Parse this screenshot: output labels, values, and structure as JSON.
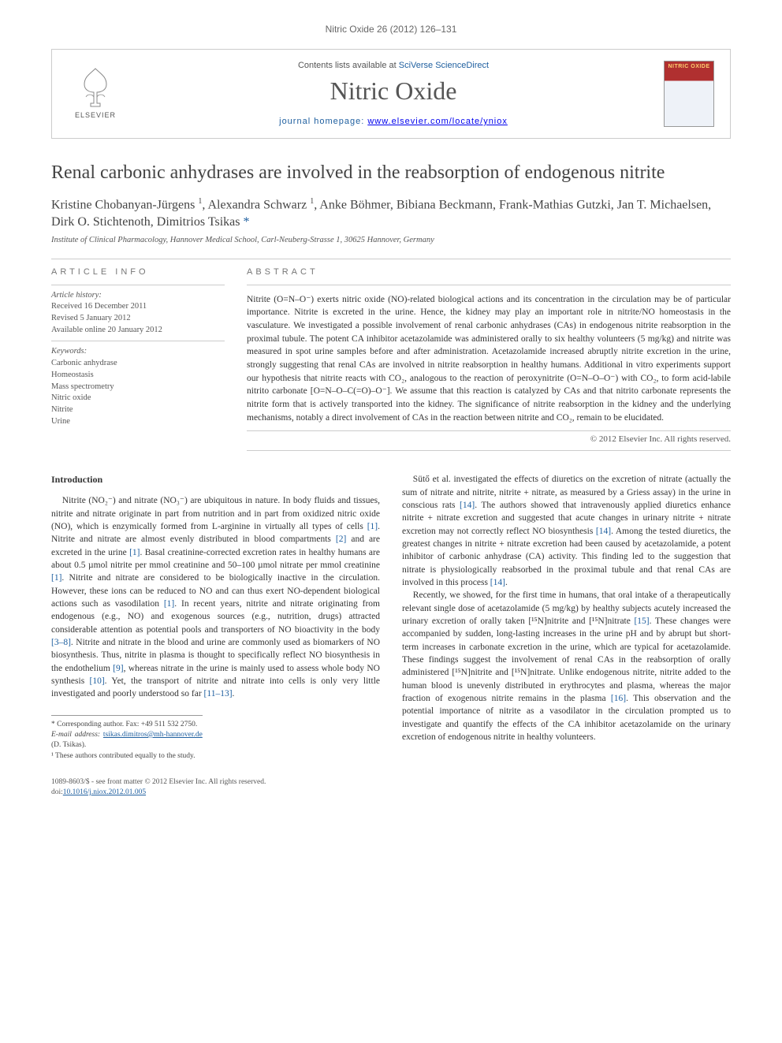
{
  "running_header": "Nitric Oxide 26 (2012) 126–131",
  "journal_box": {
    "contents_prefix": "Contents lists available at ",
    "contents_link": "SciVerse ScienceDirect",
    "journal_name": "Nitric Oxide",
    "homepage_prefix": "journal homepage: ",
    "homepage_url": "www.elsevier.com/locate/yniox",
    "publisher_label": "ELSEVIER",
    "cover_title": "NITRIC OXIDE"
  },
  "article": {
    "title": "Renal carbonic anhydrases are involved in the reabsorption of endogenous nitrite",
    "authors_html": "Kristine Chobanyan-Jürgens <sup>1</sup>, Alexandra Schwarz <sup>1</sup>, Anke Böhmer, Bibiana Beckmann, Frank-Mathias Gutzki, Jan T. Michaelsen, Dirk O. Stichtenoth, Dimitrios Tsikas <span class='corr'>*</span>",
    "affiliation": "Institute of Clinical Pharmacology, Hannover Medical School, Carl-Neuberg-Strasse 1, 30625 Hannover, Germany"
  },
  "info": {
    "section_label": "ARTICLE INFO",
    "history_label": "Article history:",
    "received": "Received 16 December 2011",
    "revised": "Revised 5 January 2012",
    "online": "Available online 20 January 2012",
    "keywords_label": "Keywords:",
    "keywords": [
      "Carbonic anhydrase",
      "Homeostasis",
      "Mass spectrometry",
      "Nitric oxide",
      "Nitrite",
      "Urine"
    ]
  },
  "abstract": {
    "section_label": "ABSTRACT",
    "text": "Nitrite (O=N–O⁻) exerts nitric oxide (NO)-related biological actions and its concentration in the circulation may be of particular importance. Nitrite is excreted in the urine. Hence, the kidney may play an important role in nitrite/NO homeostasis in the vasculature. We investigated a possible involvement of renal carbonic anhydrases (CAs) in endogenous nitrite reabsorption in the proximal tubule. The potent CA inhibitor acetazolamide was administered orally to six healthy volunteers (5 mg/kg) and nitrite was measured in spot urine samples before and after administration. Acetazolamide increased abruptly nitrite excretion in the urine, strongly suggesting that renal CAs are involved in nitrite reabsorption in healthy humans. Additional in vitro experiments support our hypothesis that nitrite reacts with CO₂, analogous to the reaction of peroxynitrite (O=N–O–O⁻) with CO₂, to form acid-labile nitrito carbonate [O=N–O–C(=O)–O⁻]. We assume that this reaction is catalyzed by CAs and that nitrito carbonate represents the nitrite form that is actively transported into the kidney. The significance of nitrite reabsorption in the kidney and the underlying mechanisms, notably a direct involvement of CAs in the reaction between nitrite and CO₂, remain to be elucidated.",
    "copyright": "© 2012 Elsevier Inc. All rights reserved."
  },
  "body": {
    "heading": "Introduction",
    "left_paragraphs": [
      "Nitrite (NO₂⁻) and nitrate (NO₃⁻) are ubiquitous in nature. In body fluids and tissues, nitrite and nitrate originate in part from nutrition and in part from oxidized nitric oxide (NO), which is enzymically formed from L-arginine in virtually all types of cells [1]. Nitrite and nitrate are almost evenly distributed in blood compartments [2] and are excreted in the urine [1]. Basal creatinine-corrected excretion rates in healthy humans are about 0.5 µmol nitrite per mmol creatinine and 50–100 µmol nitrate per mmol creatinine [1]. Nitrite and nitrate are considered to be biologically inactive in the circulation. However, these ions can be reduced to NO and can thus exert NO-dependent biological actions such as vasodilation [1]. In recent years, nitrite and nitrate originating from endogenous (e.g., NO) and exogenous sources (e.g., nutrition, drugs) attracted considerable attention as potential pools and transporters of NO bioactivity in the body [3–8]. Nitrite and nitrate in the blood and urine are commonly used as biomarkers of NO biosynthesis. Thus, nitrite in plasma is thought to specifically reflect NO biosynthesis in the endothelium [9], whereas nitrate in the urine is mainly used to assess whole body NO synthesis [10]. Yet, the transport of nitrite and nitrate into cells is only very little investigated and poorly understood so far [11–13]."
    ],
    "right_paragraphs": [
      "Sütő et al. investigated the effects of diuretics on the excretion of nitrate (actually the sum of nitrate and nitrite, nitrite + nitrate, as measured by a Griess assay) in the urine in conscious rats [14]. The authors showed that intravenously applied diuretics enhance nitrite + nitrate excretion and suggested that acute changes in urinary nitrite + nitrate excretion may not correctly reflect NO biosynthesis [14]. Among the tested diuretics, the greatest changes in nitrite + nitrate excretion had been caused by acetazolamide, a potent inhibitor of carbonic anhydrase (CA) activity. This finding led to the suggestion that nitrate is physiologically reabsorbed in the proximal tubule and that renal CAs are involved in this process [14].",
      "Recently, we showed, for the first time in humans, that oral intake of a therapeutically relevant single dose of acetazolamide (5 mg/kg) by healthy subjects acutely increased the urinary excretion of orally taken [¹⁵N]nitrite and [¹⁵N]nitrate [15]. These changes were accompanied by sudden, long-lasting increases in the urine pH and by abrupt but short-term increases in carbonate excretion in the urine, which are typical for acetazolamide. These findings suggest the involvement of renal CAs in the reabsorption of orally administered [¹⁵N]nitrite and [¹⁵N]nitrate. Unlike endogenous nitrite, nitrite added to the human blood is unevenly distributed in erythrocytes and plasma, whereas the major fraction of exogenous nitrite remains in the plasma [16]. This observation and the potential importance of nitrite as a vasodilator in the circulation prompted us to investigate and quantify the effects of the CA inhibitor acetazolamide on the urinary excretion of endogenous nitrite in healthy volunteers."
    ]
  },
  "footnotes": {
    "corr": "* Corresponding author. Fax: +49 511 532 2750.",
    "email_label": "E-mail address: ",
    "email": "tsikas.dimitros@mh-hannover.de",
    "email_suffix": " (D. Tsikas).",
    "equal": "¹ These authors contributed equally to the study."
  },
  "footer": {
    "line1": "1089-8603/$ - see front matter © 2012 Elsevier Inc. All rights reserved.",
    "doi_prefix": "doi:",
    "doi": "10.1016/j.niox.2012.01.005"
  },
  "colors": {
    "link": "#2060a0",
    "rule": "#cccccc",
    "text": "#333333",
    "muted": "#666666"
  }
}
